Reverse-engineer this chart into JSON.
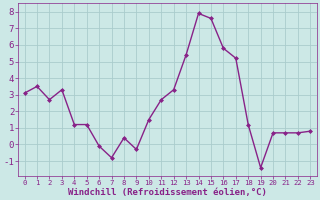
{
  "x": [
    0,
    1,
    2,
    3,
    4,
    5,
    6,
    7,
    8,
    9,
    10,
    11,
    12,
    13,
    14,
    15,
    16,
    17,
    18,
    19,
    20,
    21,
    22,
    23
  ],
  "y": [
    3.1,
    3.5,
    2.7,
    3.3,
    1.2,
    1.2,
    -0.1,
    -0.8,
    0.4,
    -0.3,
    1.5,
    2.7,
    3.3,
    5.4,
    7.9,
    7.6,
    5.8,
    5.2,
    1.2,
    -1.4,
    0.7,
    0.7,
    0.7,
    0.8
  ],
  "line_color": "#882288",
  "marker": "D",
  "marker_size": 2.0,
  "line_width": 1.0,
  "bg_color": "#cce8e6",
  "grid_color": "#aacccc",
  "xlabel": "Windchill (Refroidissement éolien,°C)",
  "xlabel_color": "#882288",
  "xlabel_fontsize": 6.5,
  "tick_color": "#882288",
  "ytick_fontsize": 6.5,
  "xtick_fontsize": 5.2,
  "ylim": [
    -1.9,
    8.5
  ],
  "xlim": [
    -0.5,
    23.5
  ],
  "yticks": [
    -1,
    0,
    1,
    2,
    3,
    4,
    5,
    6,
    7,
    8
  ],
  "xticks": [
    0,
    1,
    2,
    3,
    4,
    5,
    6,
    7,
    8,
    9,
    10,
    11,
    12,
    13,
    14,
    15,
    16,
    17,
    18,
    19,
    20,
    21,
    22,
    23
  ]
}
